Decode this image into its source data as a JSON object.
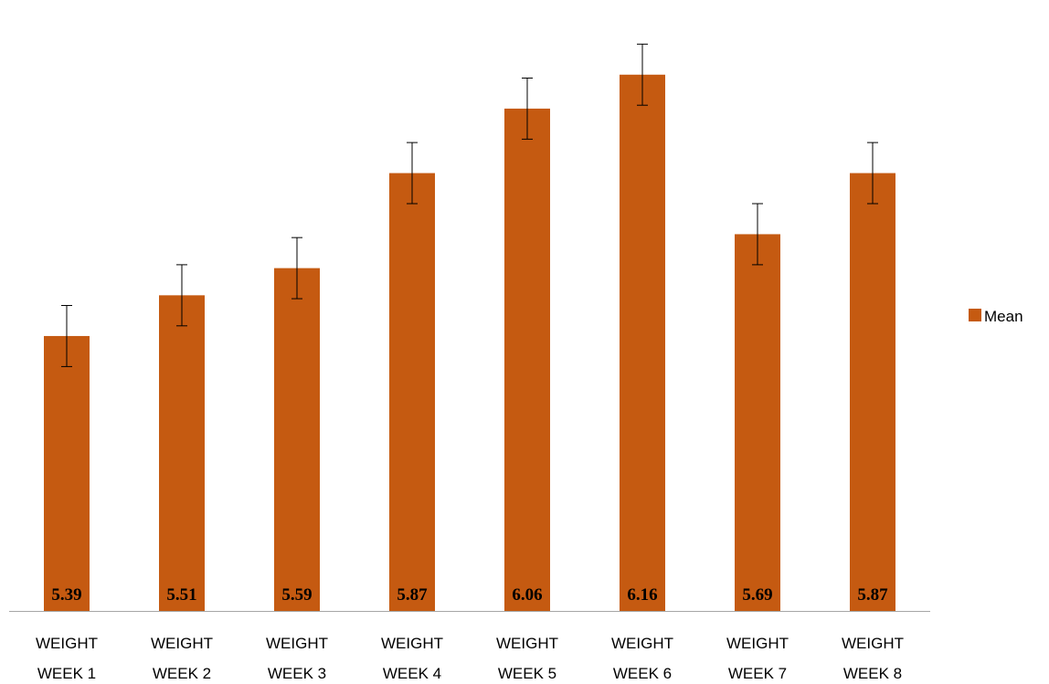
{
  "chart_data": {
    "type": "bar",
    "categories": [
      [
        "WEIGHT",
        "WEEK 1"
      ],
      [
        "WEIGHT",
        "WEEK 2"
      ],
      [
        "WEIGHT",
        "WEEK 3"
      ],
      [
        "WEIGHT",
        "WEEK 4"
      ],
      [
        "WEIGHT",
        "WEEK 5"
      ],
      [
        "WEIGHT",
        "WEEK 6"
      ],
      [
        "WEIGHT",
        "WEEK 7"
      ],
      [
        "WEIGHT",
        "WEEK 8"
      ]
    ],
    "series": [
      {
        "name": "Mean",
        "values": [
          5.39,
          5.51,
          5.59,
          5.87,
          6.06,
          6.16,
          5.69,
          5.87
        ],
        "error": [
          0.09,
          0.09,
          0.09,
          0.09,
          0.09,
          0.09,
          0.09,
          0.09
        ],
        "color": "#C55A11"
      }
    ],
    "data_labels": [
      "5.39",
      "5.51",
      "5.59",
      "5.87",
      "6.06",
      "6.16",
      "5.69",
      "5.87"
    ],
    "title": "",
    "xlabel": "",
    "ylabel": "",
    "ylim": [
      4.58,
      6.26
    ],
    "grid": false,
    "legend": "right",
    "error_bar_color": "#000000",
    "axis_color": "#A6A6A6"
  }
}
